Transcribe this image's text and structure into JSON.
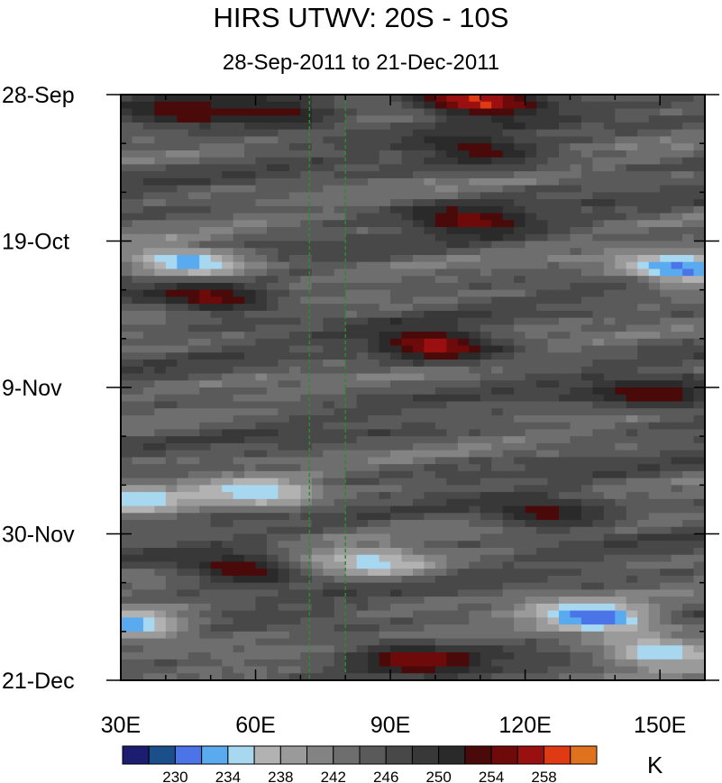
{
  "chart_data": {
    "type": "heatmap",
    "title": "HIRS UTWV: 20S - 10S",
    "subtitle": "28-Sep-2011 to 21-Dec-2011",
    "x_range": [
      30,
      160
    ],
    "y_range": [
      "28-Sep",
      "21-Dec"
    ],
    "x_ticks": [
      {
        "value": 30,
        "label": "30E"
      },
      {
        "value": 60,
        "label": "60E"
      },
      {
        "value": 90,
        "label": "90E"
      },
      {
        "value": 120,
        "label": "120E"
      },
      {
        "value": 150,
        "label": "150E"
      }
    ],
    "y_ticks": [
      {
        "value": 0,
        "label": "28-Sep"
      },
      {
        "value": 21,
        "label": "19-Oct"
      },
      {
        "value": 42,
        "label": "9-Nov"
      },
      {
        "value": 63,
        "label": "30-Nov"
      },
      {
        "value": 84,
        "label": "21-Dec"
      }
    ],
    "reference_lines_x": [
      72,
      80
    ],
    "colorbar": {
      "units": "K",
      "levels": [
        228,
        230,
        232,
        234,
        236,
        238,
        240,
        242,
        244,
        246,
        248,
        250,
        252,
        254,
        256,
        258,
        260
      ],
      "labels": [
        "230",
        "234",
        "238",
        "242",
        "246",
        "250",
        "254",
        "258"
      ],
      "colors": [
        "#1c1c70",
        "#1a4f8c",
        "#4a74e8",
        "#5aaaf0",
        "#a8d8f0",
        "#b2b2b2",
        "#9a9a9a",
        "#838383",
        "#6e6e6e",
        "#5a5a5a",
        "#484848",
        "#383838",
        "#2a2a2a",
        "#4a0a0a",
        "#6e0a0a",
        "#9a1010",
        "#e03a14",
        "#e0721e"
      ]
    },
    "features": [
      {
        "lon": 110,
        "day": 1,
        "value": 259
      },
      {
        "lon": 65,
        "day": 2.5,
        "value": 253
      },
      {
        "lon": 45,
        "day": 2.5,
        "value": 254
      },
      {
        "lon": 110,
        "day": 8,
        "value": 253
      },
      {
        "lon": 108,
        "day": 18,
        "value": 255
      },
      {
        "lon": 50,
        "day": 29,
        "value": 255
      },
      {
        "lon": 100,
        "day": 36,
        "value": 257
      },
      {
        "lon": 148,
        "day": 43,
        "value": 254
      },
      {
        "lon": 45,
        "day": 24,
        "value": 233
      },
      {
        "lon": 155,
        "day": 25,
        "value": 231
      },
      {
        "lon": 60,
        "day": 57,
        "value": 234
      },
      {
        "lon": 125,
        "day": 60,
        "value": 253
      },
      {
        "lon": 57,
        "day": 68,
        "value": 254
      },
      {
        "lon": 96,
        "day": 81,
        "value": 256
      },
      {
        "lon": 135,
        "day": 75,
        "value": 230
      },
      {
        "lon": 150,
        "day": 80,
        "value": 234
      },
      {
        "lon": 32,
        "day": 76,
        "value": 233
      },
      {
        "lon": 86,
        "day": 67,
        "value": 235
      },
      {
        "lon": 32,
        "day": 58,
        "value": 234
      }
    ]
  }
}
